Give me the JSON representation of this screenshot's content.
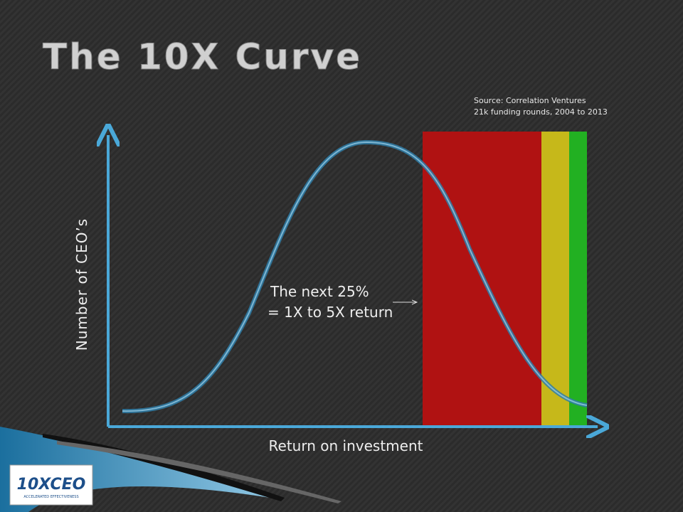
{
  "slide": {
    "title": "The 10X Curve",
    "source": [
      "Source: Correlation Ventures",
      "21k funding rounds, 2004 to 2013"
    ],
    "y_axis_label": "Number of CEO’s",
    "x_axis_label": "Return on investment",
    "annotation": [
      "The next 25%",
      "= 1X to 5X return"
    ],
    "logo": {
      "name": "10XCEO",
      "tagline": "ACCELERATED EFFECTIVENESS"
    }
  }
}
